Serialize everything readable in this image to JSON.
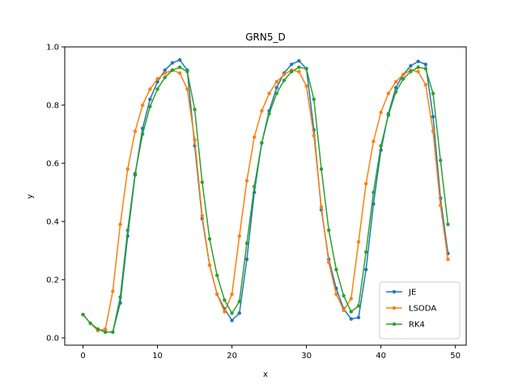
{
  "chart_data": {
    "type": "line",
    "title": "GRN5_D",
    "xlabel": "x",
    "ylabel": "y",
    "xlim": [
      -2.45,
      51.45
    ],
    "ylim": [
      -0.025,
      1.0
    ],
    "xticks": [
      0,
      10,
      20,
      30,
      40,
      50
    ],
    "yticks": [
      0.0,
      0.2,
      0.4,
      0.6,
      0.8,
      1.0
    ],
    "xtick_labels": [
      "0",
      "10",
      "20",
      "30",
      "40",
      "50"
    ],
    "ytick_labels": [
      "0.0",
      "0.2",
      "0.4",
      "0.6",
      "0.8",
      "1.0"
    ],
    "grid": false,
    "legend_position": "lower-right",
    "x": [
      0,
      1,
      2,
      3,
      4,
      5,
      6,
      7,
      8,
      9,
      10,
      11,
      12,
      13,
      14,
      15,
      16,
      17,
      18,
      19,
      20,
      21,
      22,
      23,
      24,
      25,
      26,
      27,
      28,
      29,
      30,
      31,
      32,
      33,
      34,
      35,
      36,
      37,
      38,
      39,
      40,
      41,
      42,
      43,
      44,
      45,
      46,
      47,
      48,
      49
    ],
    "series": [
      {
        "name": "JE",
        "color": "#1f77b4",
        "values": [
          0.08,
          0.05,
          0.03,
          0.02,
          0.02,
          0.12,
          0.35,
          0.56,
          0.72,
          0.82,
          0.88,
          0.92,
          0.945,
          0.955,
          0.92,
          0.66,
          0.41,
          0.25,
          0.15,
          0.1,
          0.06,
          0.085,
          0.27,
          0.5,
          0.67,
          0.78,
          0.86,
          0.91,
          0.94,
          0.952,
          0.925,
          0.715,
          0.44,
          0.27,
          0.17,
          0.1,
          0.065,
          0.07,
          0.235,
          0.46,
          0.645,
          0.77,
          0.86,
          0.905,
          0.935,
          0.95,
          0.94,
          0.76,
          0.48,
          0.29
        ]
      },
      {
        "name": "LSODA",
        "color": "#ff7f0e",
        "values": [
          0.08,
          0.05,
          0.025,
          0.03,
          0.16,
          0.39,
          0.58,
          0.71,
          0.8,
          0.855,
          0.89,
          0.91,
          0.92,
          0.91,
          0.855,
          0.68,
          0.42,
          0.25,
          0.15,
          0.09,
          0.15,
          0.35,
          0.54,
          0.69,
          0.78,
          0.84,
          0.88,
          0.905,
          0.92,
          0.915,
          0.865,
          0.695,
          0.45,
          0.26,
          0.15,
          0.095,
          0.135,
          0.33,
          0.53,
          0.675,
          0.775,
          0.84,
          0.88,
          0.905,
          0.92,
          0.915,
          0.87,
          0.71,
          0.455,
          0.27
        ]
      },
      {
        "name": "RK4",
        "color": "#2ca02c",
        "values": [
          0.08,
          0.05,
          0.03,
          0.02,
          0.02,
          0.14,
          0.37,
          0.565,
          0.7,
          0.795,
          0.855,
          0.895,
          0.92,
          0.93,
          0.915,
          0.785,
          0.535,
          0.34,
          0.215,
          0.13,
          0.085,
          0.125,
          0.325,
          0.52,
          0.67,
          0.77,
          0.84,
          0.885,
          0.915,
          0.93,
          0.925,
          0.82,
          0.58,
          0.37,
          0.235,
          0.145,
          0.09,
          0.11,
          0.295,
          0.5,
          0.66,
          0.765,
          0.845,
          0.89,
          0.915,
          0.93,
          0.925,
          0.84,
          0.61,
          0.39
        ]
      }
    ]
  }
}
